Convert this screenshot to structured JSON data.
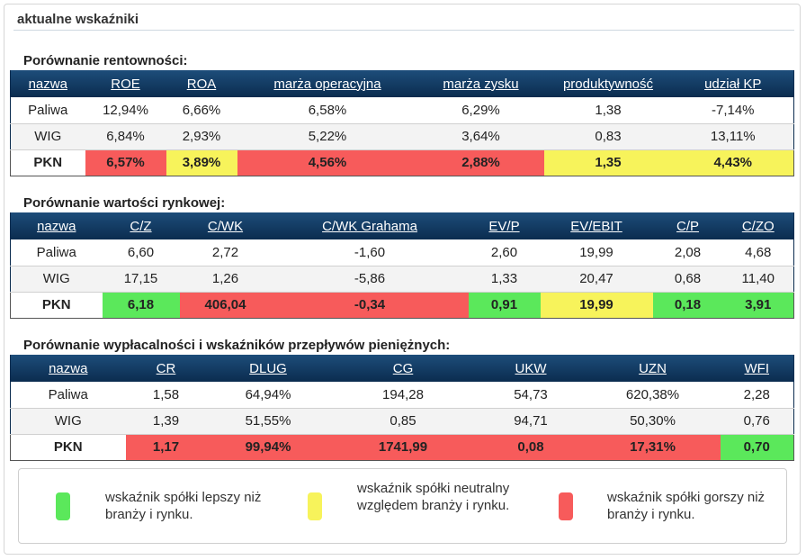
{
  "panel": {
    "title": "aktualne wskaźniki"
  },
  "colors": {
    "red": "#f75b5b",
    "yellow": "#f7f35b",
    "green": "#5be85b",
    "header": "#0b2c4f"
  },
  "rentownosc": {
    "title": "Porównanie rentowności:",
    "headers": [
      "nazwa",
      "ROE",
      "ROA",
      "marża operacyjna",
      "marża zysku",
      "produktywność",
      "udział KP"
    ],
    "rows": [
      [
        "Paliwa",
        "12,94%",
        "6,66%",
        "6,58%",
        "6,29%",
        "1,38",
        "-7,14%"
      ],
      [
        "WIG",
        "6,84%",
        "2,93%",
        "5,22%",
        "3,64%",
        "0,83",
        "13,11%"
      ],
      [
        "PKN",
        "6,57%",
        "3,89%",
        "4,56%",
        "2,88%",
        "1,35",
        "4,43%"
      ]
    ],
    "pkn_status": [
      "",
      "red",
      "yellow",
      "red",
      "red",
      "yellow",
      "yellow"
    ]
  },
  "wartosc": {
    "title": "Porównanie wartości rynkowej:",
    "headers": [
      "nazwa",
      "C/Z",
      "C/WK",
      "C/WK Grahama",
      "EV/P",
      "EV/EBIT",
      "C/P",
      "C/ZO"
    ],
    "rows": [
      [
        "Paliwa",
        "6,60",
        "2,72",
        "-1,60",
        "2,60",
        "19,99",
        "2,08",
        "4,68"
      ],
      [
        "WIG",
        "17,15",
        "1,26",
        "-5,86",
        "1,33",
        "20,47",
        "0,68",
        "11,40"
      ],
      [
        "PKN",
        "6,18",
        "406,04",
        "-0,34",
        "0,91",
        "19,99",
        "0,18",
        "3,91"
      ]
    ],
    "pkn_status": [
      "",
      "green",
      "red",
      "red",
      "green",
      "yellow",
      "green",
      "green"
    ]
  },
  "wyplacalnosc": {
    "title": "Porównanie wypłacalności i wskaźników przepływów pieniężnych:",
    "headers": [
      "nazwa",
      "CR",
      "DLUG",
      "CG",
      "UKW",
      "UZN",
      "WFI"
    ],
    "rows": [
      [
        "Paliwa",
        "1,58",
        "64,94%",
        "194,28",
        "54,73",
        "620,38%",
        "2,28"
      ],
      [
        "WIG",
        "1,39",
        "51,55%",
        "0,85",
        "94,71",
        "50,30%",
        "0,76"
      ],
      [
        "PKN",
        "1,17",
        "99,94%",
        "1741,99",
        "0,08",
        "17,31%",
        "0,70"
      ]
    ],
    "pkn_status": [
      "",
      "red",
      "red",
      "red",
      "red",
      "red",
      "green"
    ]
  },
  "legend": {
    "better": "wskaźnik spółki lepszy niż branży i rynku.",
    "neutral": "wskaźnik spółki neutralny względem branży i rynku.",
    "worse": "wskaźnik spółki gorszy niż branży i rynku."
  }
}
